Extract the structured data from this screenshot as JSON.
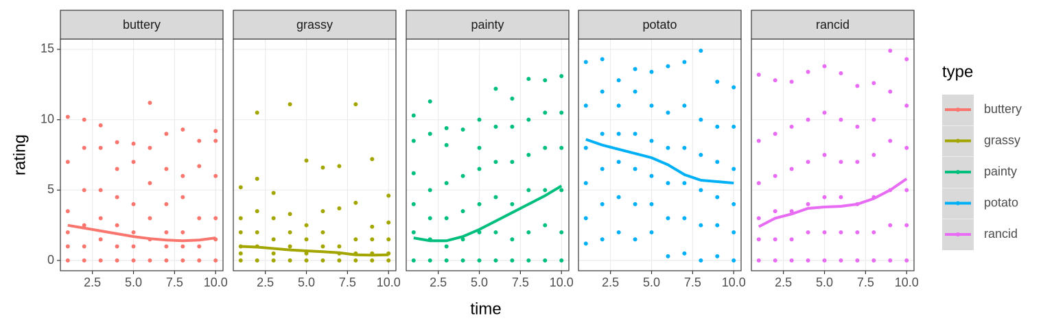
{
  "chart_data": {
    "type": "scatter",
    "xlabel": "time",
    "ylabel": "rating",
    "legend_title": "type",
    "xlim": [
      0.55,
      10.45
    ],
    "ylim": [
      -0.73,
      15.73
    ],
    "xticks": [
      2.5,
      {
        "value": 5,
        "label": "5.0"
      },
      7.5,
      {
        "value": 10,
        "label": "10.0"
      }
    ],
    "yticks": [
      0,
      5,
      10,
      15
    ],
    "grid": true,
    "x": [
      1,
      2,
      3,
      4,
      5,
      6,
      7,
      8,
      9,
      10
    ],
    "series": [
      {
        "name": "buttery",
        "color": "#F8766D",
        "values": [
          [
            0,
            1,
            2,
            3.5,
            7,
            10.2
          ],
          [
            0,
            1,
            2.5,
            5,
            8,
            10
          ],
          [
            0,
            1.5,
            3,
            5,
            8,
            9.6
          ],
          [
            0,
            1,
            2.5,
            4.5,
            6.5,
            8.4
          ],
          [
            0,
            1,
            2,
            4,
            7,
            8.3
          ],
          [
            0,
            1.5,
            3,
            5.5,
            8,
            11.2
          ],
          [
            0,
            1,
            2,
            4,
            6.5,
            9
          ],
          [
            0,
            1,
            2,
            4.5,
            6,
            9.3
          ],
          [
            0,
            1,
            3,
            6.7,
            8.5
          ],
          [
            0,
            1.5,
            3,
            6,
            8.5,
            9.2
          ]
        ],
        "smooth": [
          2.5,
          2.3,
          2.1,
          1.9,
          1.7,
          1.55,
          1.45,
          1.4,
          1.45,
          1.6
        ]
      },
      {
        "name": "grassy",
        "color": "#A3A500",
        "values": [
          [
            0,
            0.5,
            1,
            2,
            3,
            5.2
          ],
          [
            0,
            1,
            2,
            3.5,
            5.8,
            10.5
          ],
          [
            0,
            0.5,
            1.5,
            3,
            4.8
          ],
          [
            0,
            1,
            2,
            3.3,
            11.1
          ],
          [
            0,
            0.5,
            1.5,
            2.5,
            7.1
          ],
          [
            0,
            1,
            2,
            3.5,
            6.6
          ],
          [
            0,
            0.5,
            1,
            3.7,
            6.7
          ],
          [
            0,
            0.5,
            1.5,
            4.1,
            11.1
          ],
          [
            0,
            0.5,
            1.5,
            2.4,
            7.2
          ],
          [
            0,
            0.5,
            1.5,
            2.7,
            4.6
          ]
        ],
        "smooth": [
          1.0,
          0.95,
          0.85,
          0.75,
          0.68,
          0.62,
          0.55,
          0.4,
          0.38,
          0.4
        ]
      },
      {
        "name": "painty",
        "color": "#00BF7D",
        "values": [
          [
            0,
            2,
            4,
            6.2,
            8.5,
            10.3
          ],
          [
            0,
            1.5,
            3,
            5,
            9,
            11.3
          ],
          [
            0,
            1,
            3,
            5.5,
            8.2,
            9.4
          ],
          [
            0,
            1.5,
            3.5,
            6,
            9.3
          ],
          [
            0,
            2,
            4,
            6.5,
            8,
            10
          ],
          [
            0,
            2,
            4.5,
            7,
            9.5,
            12.2
          ],
          [
            0,
            1.5,
            4,
            7,
            9.5,
            11.5
          ],
          [
            0,
            2,
            5,
            7.5,
            10,
            12.9
          ],
          [
            0,
            2.5,
            5,
            8,
            10.5,
            12.8
          ],
          [
            0,
            2,
            5,
            8,
            10.5,
            13.1
          ]
        ],
        "smooth": [
          1.6,
          1.4,
          1.4,
          1.7,
          2.2,
          2.8,
          3.4,
          4.0,
          4.6,
          5.3
        ]
      },
      {
        "name": "potato",
        "color": "#00B0F6",
        "values": [
          [
            1.2,
            3,
            5.5,
            8,
            11,
            14.1
          ],
          [
            1.5,
            4,
            6.5,
            9,
            12,
            14.3
          ],
          [
            2,
            4.5,
            7,
            9,
            11,
            12.8
          ],
          [
            1.5,
            4,
            6.5,
            9,
            12,
            13.6
          ],
          [
            2,
            4,
            6,
            8.5,
            11,
            13.4
          ],
          [
            0.3,
            3,
            5.5,
            8,
            10.5,
            13.8
          ],
          [
            0.5,
            3,
            5.5,
            8,
            11,
            14.1
          ],
          [
            0,
            2.5,
            5,
            7.5,
            10,
            14.9
          ],
          [
            0.3,
            2.5,
            4.5,
            7,
            9.5,
            12.7
          ],
          [
            0,
            2,
            4,
            6.5,
            9.5,
            12.3
          ]
        ],
        "smooth": [
          8.6,
          8.2,
          7.9,
          7.6,
          7.3,
          6.8,
          6.1,
          5.7,
          5.6,
          5.5
        ]
      },
      {
        "name": "rancid",
        "color": "#E76BF3",
        "values": [
          [
            0,
            1.5,
            3,
            5.5,
            8.5,
            13.2
          ],
          [
            0,
            1.5,
            3.5,
            6,
            9,
            12.8
          ],
          [
            0,
            1.5,
            3.5,
            6.5,
            9.5,
            12.7
          ],
          [
            0,
            2,
            4,
            7,
            10,
            13.4
          ],
          [
            0,
            2,
            4.5,
            7.5,
            10.5,
            13.8
          ],
          [
            0,
            2,
            4.5,
            7,
            10,
            13.3
          ],
          [
            0,
            2,
            4,
            7,
            9.5,
            12.4
          ],
          [
            0,
            2,
            4.5,
            7.5,
            10,
            12.6
          ],
          [
            0,
            2.5,
            5,
            8.5,
            12,
            14.9
          ],
          [
            0,
            2.5,
            5,
            8,
            11,
            14.3
          ]
        ],
        "smooth": [
          2.4,
          3.0,
          3.3,
          3.7,
          3.8,
          3.85,
          4.0,
          4.4,
          5.0,
          5.8
        ]
      }
    ]
  }
}
